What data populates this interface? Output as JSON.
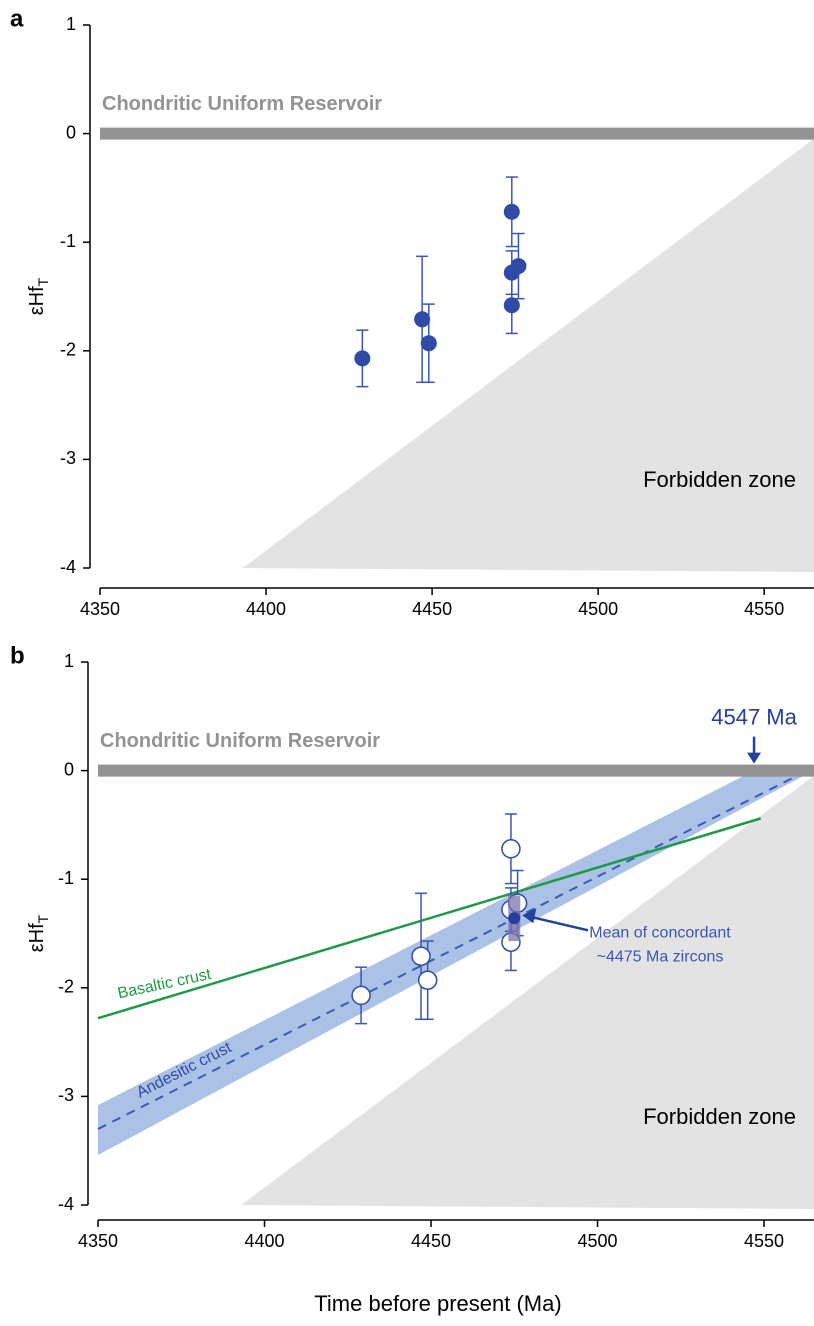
{
  "chart_data": [
    {
      "type": "scatter",
      "panel": "a",
      "ylabel": "εHf",
      "ylabel_sub": "T",
      "xlim": [
        4350,
        4565
      ],
      "ylim": [
        -4,
        1
      ],
      "xticks": [
        4350,
        4400,
        4450,
        4500,
        4550
      ],
      "yticks": [
        -4,
        -3,
        -2,
        -1,
        0,
        1
      ],
      "marker": "filled",
      "color": "#2f4ba6",
      "x": [
        4429,
        4447,
        4449,
        4474,
        4474,
        4474,
        4476
      ],
      "values": [
        -2.07,
        -1.71,
        -1.93,
        -0.72,
        -1.28,
        -1.58,
        -1.22
      ],
      "errors": [
        0.26,
        0.58,
        0.36,
        0.32,
        0.2,
        0.26,
        0.3
      ],
      "reference": {
        "label": "Chondritic Uniform Reservoir",
        "value": 0,
        "color": "#939393"
      },
      "forbidden": {
        "label": "Forbidden zone",
        "x": [
          4393,
          4567
        ],
        "values": [
          -4,
          0
        ],
        "color": "#e3e3e3"
      }
    },
    {
      "type": "scatter",
      "panel": "b",
      "ylabel": "εHf",
      "ylabel_sub": "T",
      "xlabel": "Time before present (Ma)",
      "xlim": [
        4350,
        4565
      ],
      "ylim": [
        -4,
        1
      ],
      "xticks": [
        4350,
        4400,
        4450,
        4500,
        4550
      ],
      "yticks": [
        -4,
        -3,
        -2,
        -1,
        0,
        1
      ],
      "marker": "open",
      "color": "#2f4ba6",
      "x": [
        4429,
        4447,
        4449,
        4474,
        4474,
        4474,
        4476
      ],
      "values": [
        -2.07,
        -1.71,
        -1.93,
        -0.72,
        -1.28,
        -1.58,
        -1.22
      ],
      "errors": [
        0.26,
        0.58,
        0.36,
        0.32,
        0.2,
        0.26,
        0.3
      ],
      "reference": {
        "label": "Chondritic Uniform Reservoir",
        "value": 0,
        "color": "#939393"
      },
      "forbidden": {
        "label": "Forbidden zone",
        "x": [
          4393,
          4567
        ],
        "values": [
          -4,
          0
        ],
        "color": "#e3e3e3"
      },
      "lines": [
        {
          "label": "Basaltic crust",
          "color": "#1e9a46",
          "x": [
            4350,
            4549
          ],
          "values": [
            -2.28,
            -0.44
          ]
        }
      ],
      "band": {
        "label": "Andesitic crust",
        "color": "#7e9fd8",
        "x": [
          4350,
          4547,
          4565
        ],
        "upper": [
          -3.08,
          0,
          0
        ],
        "lower": [
          -3.54,
          -0.29,
          0
        ],
        "center_x": [
          4350,
          4563
        ],
        "center": [
          -3.3,
          0
        ]
      },
      "age": {
        "label": "4547 Ma",
        "x": 4547
      },
      "mean": {
        "label": [
          "Mean of concordant",
          "~4475 Ma zircons"
        ],
        "x": 4475,
        "value": -1.36,
        "error": 0.21
      }
    }
  ]
}
